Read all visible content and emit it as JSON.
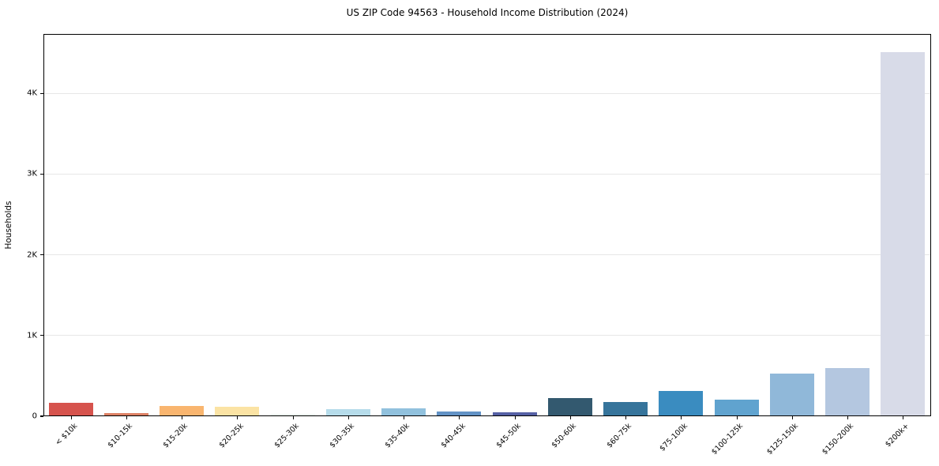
{
  "figure": {
    "background_color": "#ffffff",
    "axis_color": "#000000"
  },
  "chart_data": {
    "type": "bar",
    "title": "US ZIP Code 94563 - Household Income Distribution (2024)",
    "xlabel": "",
    "ylabel": "Households",
    "categories": [
      "< $10k",
      "$10-15k",
      "$15-20k",
      "$20-25k",
      "$25-30k",
      "$30-35k",
      "$35-40k",
      "$40-45k",
      "$45-50k",
      "$50-60k",
      "$60-75k",
      "$75-100k",
      "$100-125k",
      "$125-150k",
      "$150-200k",
      "$200k+"
    ],
    "values": [
      160,
      30,
      115,
      105,
      15,
      75,
      90,
      50,
      35,
      220,
      165,
      300,
      195,
      515,
      590,
      4500
    ],
    "bar_colors": [
      "#d6534d",
      "#dd8165",
      "#f9b56f",
      "#fbe3a4",
      "#edf6ef",
      "#b6dcea",
      "#91c1dd",
      "#6292c5",
      "#5560a4",
      "#33596f",
      "#36749b",
      "#3a8cc0",
      "#60a3cf",
      "#90b8d9",
      "#b4c7e0",
      "#d8dbe8"
    ],
    "ytick_values": [
      0,
      1000,
      2000,
      3000,
      4000
    ],
    "ytick_labels": [
      "0",
      "1K",
      "2K",
      "3K",
      "4K"
    ],
    "ylim": [
      0,
      4735
    ],
    "bar_width_fraction": 0.8,
    "grid": "horizontal",
    "grid_color": "#e7e7e7",
    "legend_position": "none",
    "x_label_rotation_deg": 45
  }
}
